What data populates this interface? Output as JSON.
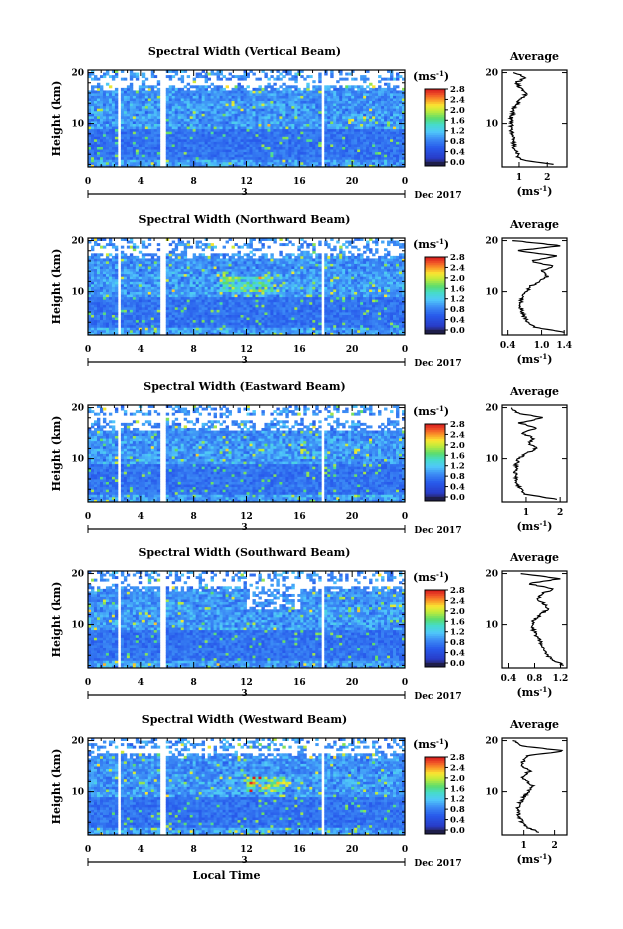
{
  "figure": {
    "xlabel": "Local Time",
    "date_label": "Dec 2017",
    "day_label": "3"
  },
  "chart_data": [
    {
      "type": "heatmap",
      "title": "Spectral Width (Vertical Beam)",
      "ylabel": "Height (km)",
      "xlabel": "Local Time",
      "x_ticks": [
        "0",
        "4",
        "8",
        "12",
        "16",
        "20",
        "0"
      ],
      "xlim": [
        0,
        24
      ],
      "y_ticks": [
        "10",
        "20"
      ],
      "ylim": [
        1.5,
        20.5
      ],
      "gaps_hours": [
        [
          2.2,
          2.5
        ],
        [
          5.5,
          5.8
        ],
        [
          17.6,
          17.9
        ]
      ],
      "colorbar": {
        "unit": "(ms",
        "exp": "-1",
        "ticks": [
          "0.0",
          "0.4",
          "0.8",
          "1.2",
          "1.6",
          "2.0",
          "2.4",
          "2.8"
        ],
        "range": [
          0,
          2.8
        ]
      },
      "average": {
        "title": "Average",
        "xlabel_unit": "(ms",
        "xlabel_exp": "-1",
        "x_ticks": [
          "1",
          "2"
        ],
        "xlim": [
          0.4,
          2.7
        ],
        "y_ticks": [
          "10",
          "20"
        ],
        "heights": [
          2,
          3,
          4,
          5,
          6,
          7,
          8,
          9,
          10,
          11,
          12,
          13,
          14,
          15,
          16,
          17,
          18,
          19,
          20
        ],
        "values": [
          2.2,
          1.0,
          0.95,
          0.85,
          0.8,
          0.78,
          0.75,
          0.72,
          0.74,
          0.72,
          0.78,
          0.82,
          0.95,
          1.1,
          1.25,
          1.05,
          0.9,
          1.2,
          0.85
        ]
      }
    },
    {
      "type": "heatmap",
      "title": "Spectral Width (Northward Beam)",
      "ylabel": "Height (km)",
      "xlabel": "Local Time",
      "x_ticks": [
        "0",
        "4",
        "8",
        "12",
        "16",
        "20",
        "0"
      ],
      "xlim": [
        0,
        24
      ],
      "y_ticks": [
        "10",
        "20"
      ],
      "ylim": [
        1.5,
        20.5
      ],
      "gaps_hours": [
        [
          2.2,
          2.5
        ],
        [
          5.5,
          5.8
        ],
        [
          17.6,
          17.9
        ]
      ],
      "colorbar": {
        "unit": "(ms",
        "exp": "-1",
        "ticks": [
          "0.0",
          "0.4",
          "0.8",
          "1.2",
          "1.6",
          "2.0",
          "2.4",
          "2.8"
        ],
        "range": [
          0,
          2.8
        ]
      },
      "average": {
        "title": "Average",
        "xlabel_unit": "(ms",
        "xlabel_exp": "-1",
        "x_ticks": [
          "0.4",
          "1.0",
          "1.4"
        ],
        "xlim": [
          0.3,
          1.45
        ],
        "y_ticks": [
          "10",
          "20"
        ],
        "heights": [
          2,
          3,
          4,
          5,
          6,
          7,
          8,
          9,
          10,
          11,
          12,
          13,
          14,
          15,
          16,
          17,
          18,
          19,
          20
        ],
        "values": [
          1.4,
          0.9,
          0.75,
          0.7,
          0.65,
          0.62,
          0.63,
          0.66,
          0.72,
          0.8,
          0.95,
          1.1,
          1.0,
          1.2,
          0.8,
          1.3,
          0.55,
          1.35,
          0.5
        ]
      }
    },
    {
      "type": "heatmap",
      "title": "Spectral Width (Eastward Beam)",
      "ylabel": "Height (km)",
      "xlabel": "Local Time",
      "x_ticks": [
        "0",
        "4",
        "8",
        "12",
        "16",
        "20",
        "0"
      ],
      "xlim": [
        0,
        24
      ],
      "y_ticks": [
        "10",
        "20"
      ],
      "ylim": [
        1.5,
        20.5
      ],
      "gaps_hours": [
        [
          2.2,
          2.5
        ],
        [
          5.5,
          5.8
        ],
        [
          17.6,
          17.9
        ]
      ],
      "colorbar": {
        "unit": "(ms",
        "exp": "-1",
        "ticks": [
          "0.0",
          "0.4",
          "0.8",
          "1.2",
          "1.6",
          "2.0",
          "2.4",
          "2.8"
        ],
        "range": [
          0,
          2.8
        ]
      },
      "average": {
        "title": "Average",
        "xlabel_unit": "(ms",
        "xlabel_exp": "-1",
        "x_ticks": [
          "1",
          "2"
        ],
        "xlim": [
          0.3,
          2.2
        ],
        "y_ticks": [
          "10",
          "20"
        ],
        "heights": [
          2,
          3,
          4,
          5,
          6,
          7,
          8,
          9,
          10,
          11,
          12,
          13,
          14,
          15,
          16,
          17,
          18,
          19,
          20
        ],
        "values": [
          1.9,
          1.0,
          0.85,
          0.75,
          0.7,
          0.68,
          0.7,
          0.72,
          0.8,
          1.0,
          1.3,
          1.1,
          1.2,
          0.9,
          1.3,
          0.8,
          1.5,
          0.7,
          0.6
        ]
      }
    },
    {
      "type": "heatmap",
      "title": "Spectral Width (Southward Beam)",
      "ylabel": "Height (km)",
      "xlabel": "Local Time",
      "x_ticks": [
        "0",
        "4",
        "8",
        "12",
        "16",
        "20",
        "0"
      ],
      "xlim": [
        0,
        24
      ],
      "y_ticks": [
        "10",
        "20"
      ],
      "ylim": [
        1.5,
        20.5
      ],
      "gaps_hours": [
        [
          2.2,
          2.5
        ],
        [
          5.5,
          5.8
        ],
        [
          17.6,
          17.9
        ]
      ],
      "colorbar": {
        "unit": "(ms",
        "exp": "-1",
        "ticks": [
          "0.0",
          "0.4",
          "0.8",
          "1.2",
          "1.6",
          "2.0",
          "2.4",
          "2.8"
        ],
        "range": [
          0,
          2.8
        ]
      },
      "average": {
        "title": "Average",
        "xlabel_unit": "(ms",
        "xlabel_exp": "-1",
        "x_ticks": [
          "0.4",
          "0.8",
          "1.2"
        ],
        "xlim": [
          0.3,
          1.3
        ],
        "y_ticks": [
          "10",
          "20"
        ],
        "heights": [
          2,
          3,
          4,
          5,
          6,
          7,
          8,
          9,
          10,
          11,
          12,
          13,
          14,
          15,
          16,
          17,
          18,
          19,
          20
        ],
        "values": [
          1.25,
          1.1,
          1.0,
          0.95,
          0.9,
          0.88,
          0.82,
          0.78,
          0.75,
          0.8,
          0.9,
          1.0,
          0.95,
          0.85,
          0.9,
          1.1,
          0.7,
          1.2,
          0.6
        ]
      }
    },
    {
      "type": "heatmap",
      "title": "Spectral Width (Westward Beam)",
      "ylabel": "Height (km)",
      "xlabel": "Local Time",
      "x_ticks": [
        "0",
        "4",
        "8",
        "12",
        "16",
        "20",
        "0"
      ],
      "xlim": [
        0,
        24
      ],
      "y_ticks": [
        "10",
        "20"
      ],
      "ylim": [
        1.5,
        20.5
      ],
      "gaps_hours": [
        [
          2.2,
          2.5
        ],
        [
          5.5,
          5.8
        ],
        [
          17.6,
          17.9
        ]
      ],
      "colorbar": {
        "unit": "(ms",
        "exp": "-1",
        "ticks": [
          "0.0",
          "0.4",
          "0.8",
          "1.2",
          "1.6",
          "2.0",
          "2.4",
          "2.8"
        ],
        "range": [
          0,
          2.8
        ]
      },
      "average": {
        "title": "Average",
        "xlabel_unit": "(ms",
        "xlabel_exp": "-1",
        "x_ticks": [
          "1",
          "2"
        ],
        "xlim": [
          0.3,
          2.4
        ],
        "y_ticks": [
          "10",
          "20"
        ],
        "heights": [
          2,
          3,
          4,
          5,
          6,
          7,
          8,
          9,
          10,
          11,
          12,
          13,
          14,
          15,
          16,
          17,
          18,
          19,
          20
        ],
        "values": [
          1.5,
          1.1,
          0.95,
          0.85,
          0.8,
          0.82,
          0.9,
          1.0,
          1.15,
          1.3,
          1.1,
          0.95,
          1.2,
          0.9,
          1.0,
          1.1,
          2.3,
          0.9,
          0.7
        ]
      }
    }
  ]
}
